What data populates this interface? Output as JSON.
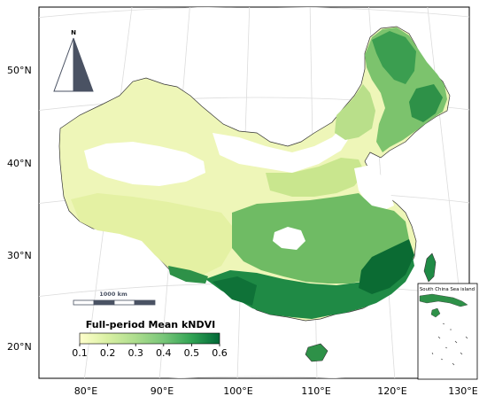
{
  "map": {
    "legend": {
      "title": "Full-period Mean kNDVI",
      "ticks": [
        "0.1",
        "0.2",
        "0.3",
        "0.4",
        "0.5",
        "0.6"
      ],
      "colormap": [
        "#ffffcc",
        "#d9f0a3",
        "#addd8e",
        "#78c679",
        "#31a354",
        "#006837"
      ]
    },
    "inset_title": "South China Sea island",
    "scale_bar_label": "1000 km",
    "north_arrow_label": "N",
    "lat_labels": [
      "50°N",
      "40°N",
      "30°N",
      "20°N"
    ],
    "lon_labels": [
      "80°E",
      "90°E",
      "100°E",
      "110°E",
      "120°E",
      "130°E"
    ],
    "colors": {
      "low": "#e8f3a6",
      "mid": "#7cc36d",
      "high": "#1e8a45",
      "very_high": "#0b6b33",
      "border": "#333333",
      "graticule": "#d9d9d9"
    }
  }
}
